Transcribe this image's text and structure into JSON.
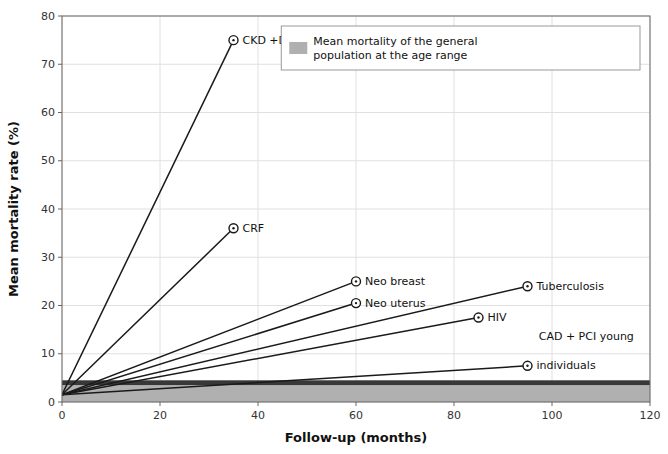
{
  "chart_data": {
    "type": "line",
    "xlabel": "Follow-up (months)",
    "ylabel": "Mean mortality rate (%)",
    "xlim": [
      0,
      120
    ],
    "ylim": [
      0,
      80
    ],
    "xticks": [
      0,
      20,
      40,
      60,
      80,
      100,
      120
    ],
    "yticks": [
      0,
      10,
      20,
      30,
      40,
      50,
      60,
      70,
      80
    ],
    "grid": true,
    "legend": "upper right",
    "marker": "circle",
    "series": [
      {
        "name": "CKD +DM",
        "x": [
          0,
          35
        ],
        "values": [
          1.5,
          75
        ],
        "color": "#1a1a1a"
      },
      {
        "name": "CRF",
        "x": [
          0,
          35
        ],
        "values": [
          1.5,
          36
        ],
        "color": "#1a1a1a"
      },
      {
        "name": "Neo breast",
        "x": [
          0,
          60
        ],
        "values": [
          1.5,
          25
        ],
        "color": "#1a1a1a"
      },
      {
        "name": "Neo uterus",
        "x": [
          0,
          60
        ],
        "values": [
          1.5,
          20.5
        ],
        "color": "#1a1a1a"
      },
      {
        "name": "HIV",
        "x": [
          0,
          85
        ],
        "values": [
          1.5,
          17.5
        ],
        "color": "#1a1a1a"
      },
      {
        "name": "Tuberculosis",
        "x": [
          0,
          95
        ],
        "values": [
          1.5,
          24
        ],
        "color": "#1a1a1a"
      },
      {
        "name": "individuals",
        "x": [
          0,
          95
        ],
        "values": [
          1.5,
          7.5
        ],
        "color": "#1a1a1a"
      }
    ],
    "bands": [
      {
        "name": "Mean mortality of the general\npopulation at the age range",
        "values": [
          0,
          3.5
        ],
        "color": "#b0b0b0"
      },
      {
        "values": [
          3.5,
          4.5
        ],
        "color": "#383838"
      }
    ],
    "annotations": [
      {
        "text": "CAD + PCI young",
        "x": 107,
        "y": 13.5
      }
    ]
  }
}
